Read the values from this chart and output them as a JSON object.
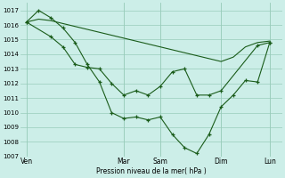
{
  "background_color": "#cceee8",
  "grid_color": "#99ccbb",
  "line_color": "#1a5c1a",
  "marker_color": "#1a5c1a",
  "xlabel_text": "Pression niveau de la mer( hPa )",
  "ylim": [
    1007,
    1017.5
  ],
  "yticks": [
    1007,
    1008,
    1009,
    1010,
    1011,
    1012,
    1013,
    1014,
    1015,
    1016,
    1017
  ],
  "xtick_labels": [
    "Ven",
    "Mar",
    "Sam",
    "Dim",
    "Lun"
  ],
  "xtick_positions": [
    0,
    8,
    11,
    16,
    20
  ],
  "xlim": [
    -0.5,
    21
  ],
  "series1_no_marker": {
    "x": [
      0,
      1,
      2,
      3,
      4,
      5,
      6,
      7,
      8,
      9,
      10,
      11,
      12,
      13,
      14,
      15,
      16,
      17,
      18,
      19,
      20
    ],
    "y": [
      1016.2,
      1016.4,
      1016.3,
      1016.1,
      1015.9,
      1015.7,
      1015.5,
      1015.3,
      1015.1,
      1014.9,
      1014.7,
      1014.5,
      1014.3,
      1014.1,
      1013.9,
      1013.7,
      1013.5,
      1013.8,
      1014.5,
      1014.8,
      1014.9
    ]
  },
  "series2": {
    "x": [
      0,
      2,
      3,
      4,
      5,
      6,
      7,
      8,
      9,
      10,
      11,
      12,
      13,
      14,
      15,
      16,
      19,
      20
    ],
    "y": [
      1016.2,
      1015.2,
      1014.5,
      1013.3,
      1013.1,
      1013.0,
      1012.0,
      1011.2,
      1011.5,
      1011.2,
      1011.8,
      1012.8,
      1013.0,
      1011.2,
      1011.2,
      1011.5,
      1014.6,
      1014.8
    ]
  },
  "series3": {
    "x": [
      0,
      1,
      2,
      3,
      4,
      5,
      6,
      7,
      8,
      9,
      10,
      11,
      12,
      13,
      14,
      15,
      16,
      17,
      18,
      19,
      20
    ],
    "y": [
      1016.2,
      1017.0,
      1016.5,
      1015.8,
      1014.8,
      1013.3,
      1012.1,
      1010.0,
      1009.6,
      1009.7,
      1009.5,
      1009.7,
      1008.5,
      1007.6,
      1007.2,
      1008.5,
      1010.4,
      1011.2,
      1012.2,
      1012.1,
      1014.8
    ]
  }
}
